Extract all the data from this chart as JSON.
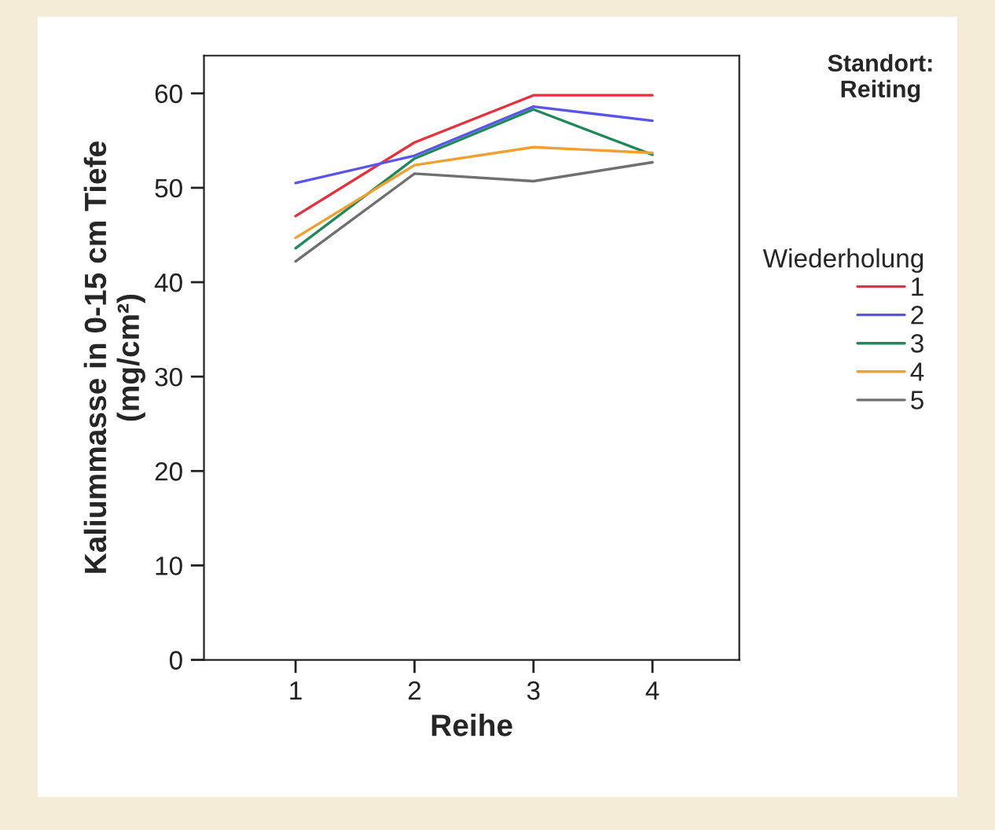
{
  "chart_data": {
    "type": "line",
    "title": "Standort:\nReiting",
    "xlabel": "Reihe",
    "ylabel": "Kaliummasse in 0-15 cm Tiefe\n(mg/cm²)",
    "legend_title": "Wiederholung",
    "categories": [
      "1",
      "2",
      "3",
      "4"
    ],
    "series": [
      {
        "name": "1",
        "color": "#e8303c",
        "values": [
          47.0,
          54.8,
          59.8,
          59.8
        ]
      },
      {
        "name": "2",
        "color": "#5a55e8",
        "values": [
          50.5,
          53.4,
          58.6,
          57.1
        ]
      },
      {
        "name": "3",
        "color": "#1e8a5a",
        "values": [
          43.6,
          53.1,
          58.3,
          53.5
        ]
      },
      {
        "name": "4",
        "color": "#f0a030",
        "values": [
          44.7,
          52.4,
          54.3,
          53.7
        ]
      },
      {
        "name": "5",
        "color": "#707070",
        "values": [
          42.2,
          51.5,
          50.7,
          52.7
        ]
      }
    ],
    "ylim": [
      0,
      64
    ],
    "yticks": [
      0,
      10,
      20,
      30,
      40,
      50,
      60
    ],
    "grid": false,
    "legend": "right",
    "marker": "none",
    "line_style": "solid"
  }
}
